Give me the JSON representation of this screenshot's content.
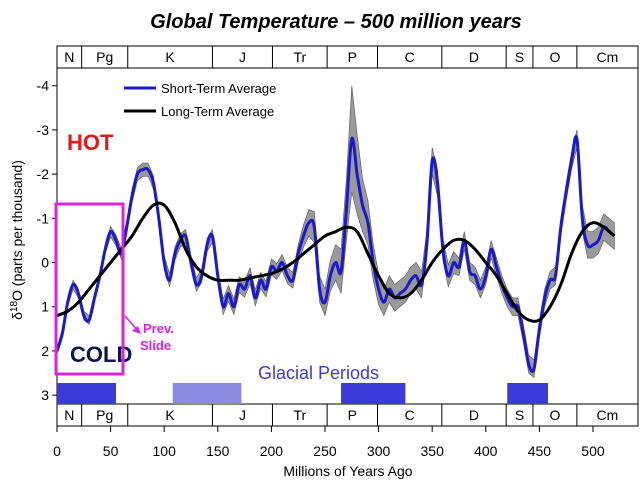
{
  "chart_data": {
    "type": "line",
    "title": "Global Temperature – 500 million years",
    "xlabel": "Millions of Years Ago",
    "ylabel_main": "δ",
    "ylabel_sup": "18",
    "ylabel_rest": "O (parts per thousand)",
    "xlim": [
      0,
      542
    ],
    "ylim": [
      -4.4,
      3.2
    ],
    "x_ticks": [
      0,
      50,
      100,
      150,
      200,
      250,
      300,
      350,
      400,
      450,
      500
    ],
    "y_ticks": [
      -4,
      -3,
      -2,
      -1,
      0,
      1,
      2,
      3
    ],
    "y_tick_labels": [
      "-4",
      "-3",
      "-2",
      "-1",
      "0",
      "1",
      "2",
      "3"
    ],
    "x_tick_labels": [
      "0",
      "50",
      "100",
      "150",
      "200",
      "250",
      "300",
      "350",
      "400",
      "450",
      "500"
    ],
    "legend_position": "top-left",
    "periods": [
      {
        "label": "N",
        "start": 0,
        "end": 23
      },
      {
        "label": "Pg",
        "start": 23,
        "end": 66
      },
      {
        "label": "K",
        "start": 66,
        "end": 145
      },
      {
        "label": "J",
        "start": 145,
        "end": 201
      },
      {
        "label": "Tr",
        "start": 201,
        "end": 252
      },
      {
        "label": "P",
        "start": 252,
        "end": 299
      },
      {
        "label": "C",
        "start": 299,
        "end": 359
      },
      {
        "label": "D",
        "start": 359,
        "end": 419
      },
      {
        "label": "S",
        "start": 419,
        "end": 444
      },
      {
        "label": "O",
        "start": 444,
        "end": 485
      },
      {
        "label": "Cm",
        "start": 485,
        "end": 542
      }
    ],
    "glacial_periods": [
      {
        "start": 0,
        "end": 55,
        "color": "#3b3bd9"
      },
      {
        "start": 108,
        "end": 172,
        "color": "#8a8ae0"
      },
      {
        "start": 265,
        "end": 325,
        "color": "#3b3bd9"
      },
      {
        "start": 420,
        "end": 458,
        "color": "#3b3bd9"
      }
    ],
    "series": [
      {
        "name": "Short-Term Average",
        "color": "#1a1acc",
        "x": [
          0,
          5,
          10,
          15,
          20,
          25,
          30,
          35,
          40,
          45,
          50,
          55,
          60,
          65,
          70,
          75,
          80,
          85,
          90,
          95,
          100,
          105,
          110,
          115,
          120,
          125,
          130,
          135,
          140,
          145,
          150,
          155,
          160,
          165,
          170,
          175,
          180,
          185,
          190,
          195,
          200,
          205,
          210,
          215,
          220,
          225,
          230,
          235,
          240,
          245,
          250,
          255,
          260,
          265,
          270,
          275,
          280,
          285,
          290,
          295,
          300,
          305,
          310,
          315,
          320,
          325,
          330,
          335,
          340,
          345,
          350,
          355,
          360,
          365,
          370,
          375,
          380,
          385,
          390,
          395,
          400,
          405,
          410,
          415,
          420,
          425,
          430,
          435,
          440,
          445,
          450,
          455,
          460,
          465,
          470,
          475,
          480,
          485,
          490,
          495,
          500,
          505,
          510,
          515,
          520
        ],
        "values": [
          2.0,
          1.6,
          0.9,
          0.5,
          0.7,
          1.2,
          1.3,
          0.8,
          0.3,
          -0.3,
          -0.7,
          -0.5,
          -0.2,
          -0.8,
          -1.5,
          -2.0,
          -2.1,
          -2.1,
          -1.8,
          -1.0,
          0.0,
          0.4,
          -0.2,
          -0.5,
          -0.6,
          0.0,
          0.5,
          0.3,
          -0.4,
          -0.6,
          0.3,
          1.0,
          0.7,
          1.0,
          0.5,
          0.6,
          0.3,
          0.8,
          0.4,
          0.6,
          0.1,
          0.2,
          0.0,
          0.3,
          0.4,
          -0.2,
          -0.6,
          -0.9,
          -0.8,
          0.6,
          0.9,
          0.3,
          0.0,
          0.2,
          -1.2,
          -2.8,
          -2.0,
          -1.3,
          -0.9,
          0.0,
          0.6,
          0.9,
          0.6,
          0.8,
          0.7,
          0.6,
          0.4,
          0.3,
          0.5,
          -0.4,
          -2.3,
          -1.8,
          -0.3,
          0.3,
          0.0,
          0.1,
          -0.5,
          0.2,
          0.3,
          0.6,
          0.3,
          -0.3,
          0.1,
          0.5,
          0.8,
          1.0,
          1.0,
          1.6,
          2.3,
          2.4,
          1.5,
          0.8,
          0.4,
          0.3,
          -0.8,
          -1.6,
          -2.3,
          -2.8,
          -1.0,
          -0.4,
          -0.4,
          -0.5,
          -0.8,
          -0.7,
          -0.6
        ],
        "band_width": [
          0.08,
          0.1,
          0.1,
          0.1,
          0.1,
          0.1,
          0.1,
          0.1,
          0.1,
          0.1,
          0.12,
          0.12,
          0.12,
          0.15,
          0.15,
          0.15,
          0.15,
          0.15,
          0.15,
          0.15,
          0.15,
          0.15,
          0.15,
          0.15,
          0.15,
          0.15,
          0.15,
          0.15,
          0.15,
          0.15,
          0.15,
          0.18,
          0.18,
          0.18,
          0.18,
          0.18,
          0.18,
          0.18,
          0.18,
          0.18,
          0.18,
          0.18,
          0.18,
          0.18,
          0.18,
          0.2,
          0.25,
          0.3,
          0.35,
          0.3,
          0.3,
          0.35,
          0.4,
          0.5,
          0.7,
          1.2,
          0.9,
          0.6,
          0.5,
          0.4,
          0.35,
          0.3,
          0.3,
          0.3,
          0.3,
          0.3,
          0.3,
          0.3,
          0.3,
          0.3,
          0.3,
          0.3,
          0.25,
          0.25,
          0.25,
          0.2,
          0.2,
          0.2,
          0.2,
          0.2,
          0.2,
          0.2,
          0.2,
          0.2,
          0.2,
          0.2,
          0.2,
          0.2,
          0.2,
          0.2,
          0.2,
          0.2,
          0.2,
          0.2,
          0.2,
          0.2,
          0.2,
          0.2,
          0.3,
          0.3,
          0.3,
          0.3,
          0.3,
          0.3,
          0.3
        ]
      },
      {
        "name": "Long-Term Average",
        "color": "#000000",
        "x": [
          0,
          10,
          20,
          30,
          40,
          50,
          60,
          70,
          80,
          90,
          100,
          110,
          120,
          130,
          140,
          150,
          160,
          170,
          180,
          190,
          200,
          210,
          220,
          230,
          240,
          250,
          260,
          270,
          280,
          290,
          300,
          310,
          320,
          330,
          340,
          350,
          360,
          370,
          380,
          390,
          400,
          410,
          420,
          430,
          440,
          450,
          460,
          470,
          480,
          490,
          500,
          510,
          520
        ],
        "values": [
          1.2,
          1.1,
          0.9,
          0.6,
          0.3,
          0.0,
          -0.3,
          -0.6,
          -1.0,
          -1.3,
          -1.3,
          -0.9,
          -0.3,
          0.1,
          0.3,
          0.4,
          0.4,
          0.4,
          0.35,
          0.3,
          0.25,
          0.15,
          0.0,
          -0.2,
          -0.4,
          -0.6,
          -0.7,
          -0.8,
          -0.7,
          -0.2,
          0.3,
          0.7,
          0.8,
          0.7,
          0.4,
          0.0,
          -0.3,
          -0.5,
          -0.5,
          -0.3,
          0.0,
          0.3,
          0.7,
          1.1,
          1.3,
          1.3,
          1.0,
          0.5,
          -0.2,
          -0.7,
          -0.9,
          -0.8,
          -0.6
        ]
      }
    ]
  },
  "legend": {
    "short_term": "Short-Term Average",
    "long_term": "Long-Term Average"
  },
  "annotations": {
    "hot": "HOT",
    "cold": "COLD",
    "glacial": "Glacial Periods",
    "prev_line1": "Prev.",
    "prev_line2": "Slide"
  },
  "colors": {
    "hot": "#e01b1b",
    "cold": "#0d1450",
    "glacial_text": "#3b3bd9",
    "highlight_box": "#e020e0",
    "band": "#9a9a9a"
  }
}
